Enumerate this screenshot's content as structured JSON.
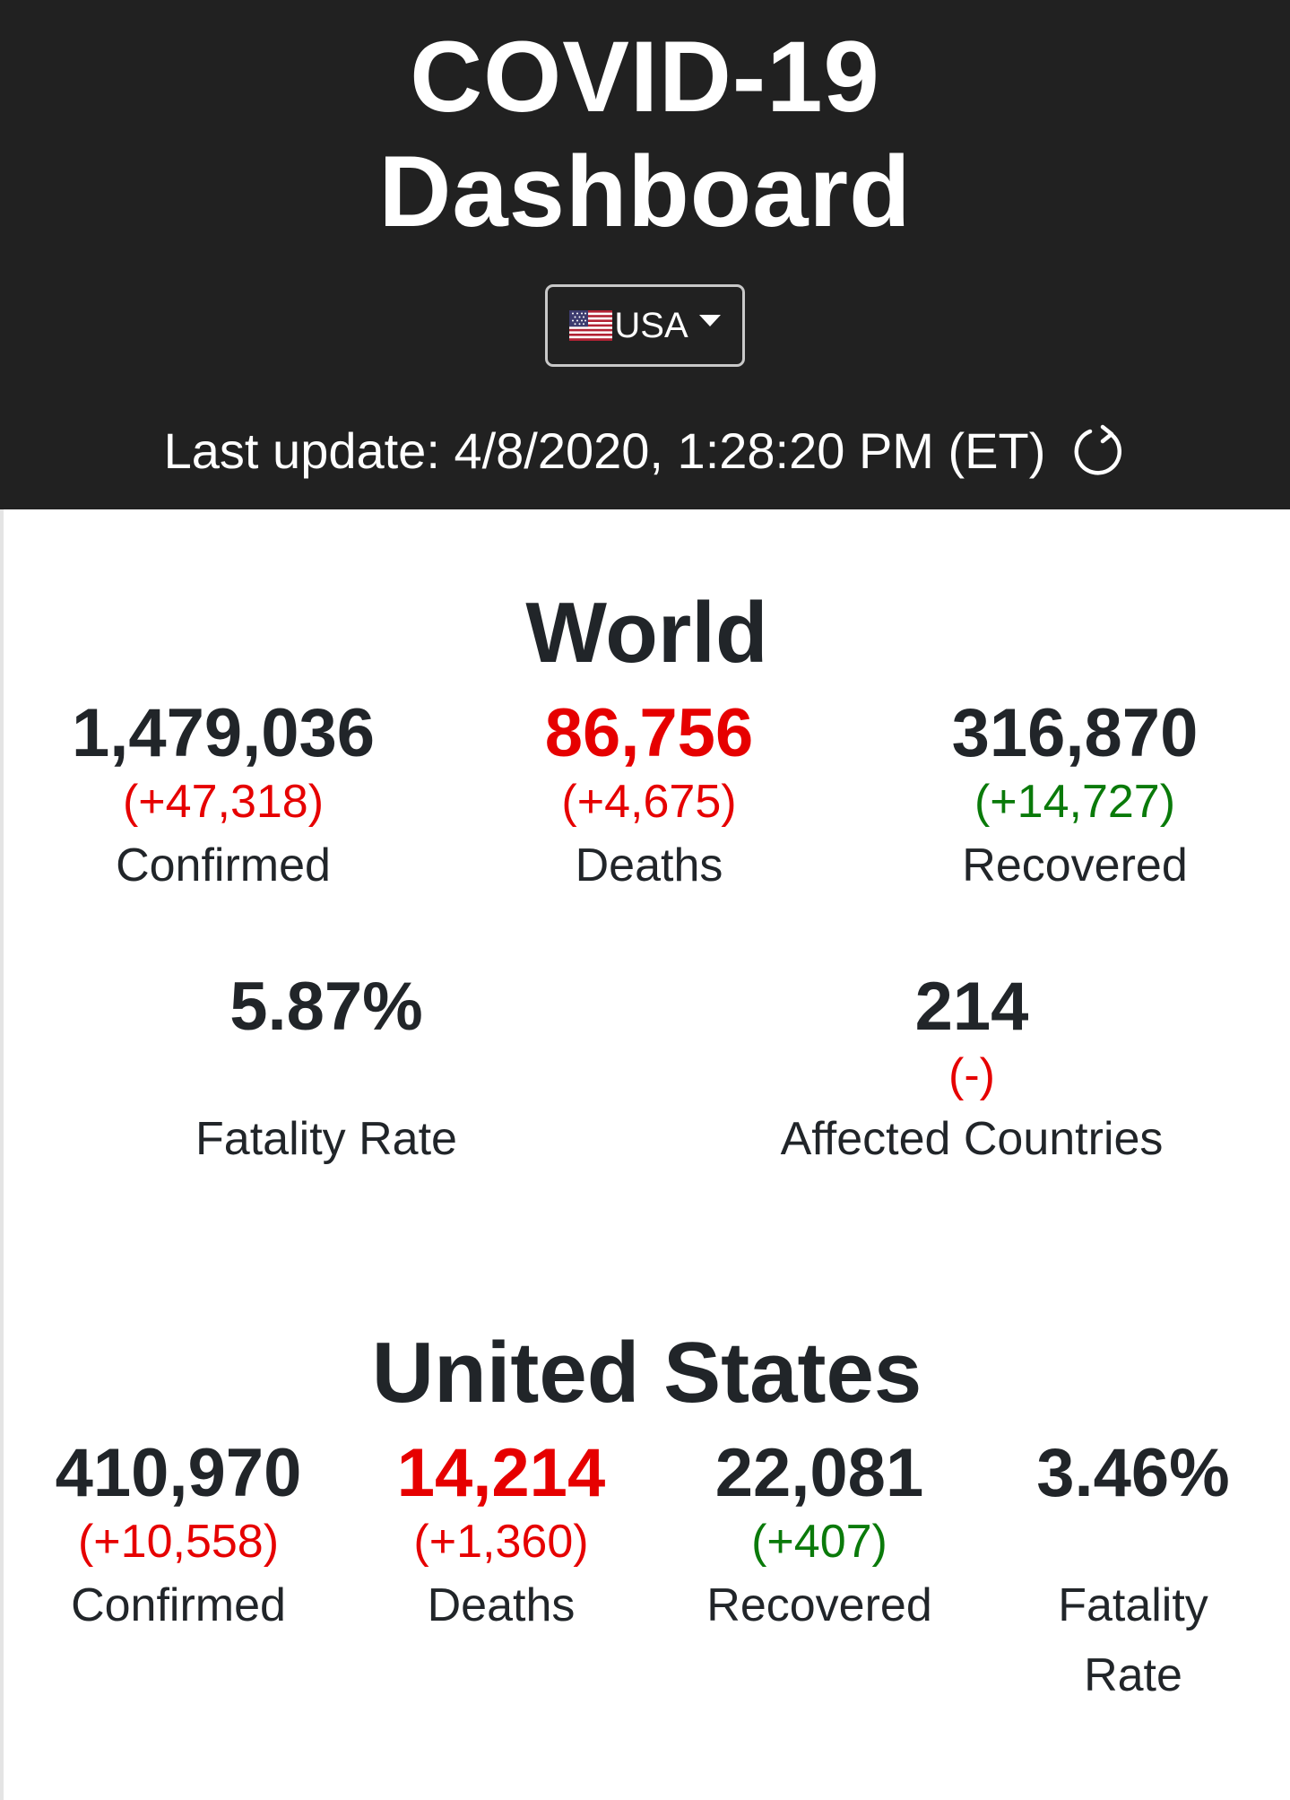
{
  "header": {
    "title_line1": "COVID-19",
    "title_line2": "Dashboard",
    "country_select": {
      "selected": "USA",
      "flag_icon": "us-flag-icon",
      "caret_icon": "caret-down-icon"
    },
    "last_update": "Last update: 4/8/2020, 1:28:20 PM (ET)",
    "refresh_icon": "refresh-icon"
  },
  "colors": {
    "header_bg": "#212121",
    "increase": "#e60000",
    "recovered": "#0a7a0a",
    "text": "#212529"
  },
  "world": {
    "title": "World",
    "confirmed": {
      "value": "1,479,036",
      "change": "(+47,318)",
      "label": "Confirmed"
    },
    "deaths": {
      "value": "86,756",
      "change": "(+4,675)",
      "label": "Deaths"
    },
    "recovered": {
      "value": "316,870",
      "change": "(+14,727)",
      "label": "Recovered"
    },
    "fatality_rate": {
      "value": "5.87%",
      "label": "Fatality Rate"
    },
    "affected_countries": {
      "value": "214",
      "change": "(-)",
      "label": "Affected Countries"
    }
  },
  "united_states": {
    "title": "United States",
    "confirmed": {
      "value": "410,970",
      "change": "(+10,558)",
      "label": "Confirmed"
    },
    "deaths": {
      "value": "14,214",
      "change": "(+1,360)",
      "label": "Deaths"
    },
    "recovered": {
      "value": "22,081",
      "change": "(+407)",
      "label": "Recovered"
    },
    "fatality_rate": {
      "value": "3.46%",
      "label_line1": "Fatality",
      "label_line2": "Rate"
    }
  }
}
